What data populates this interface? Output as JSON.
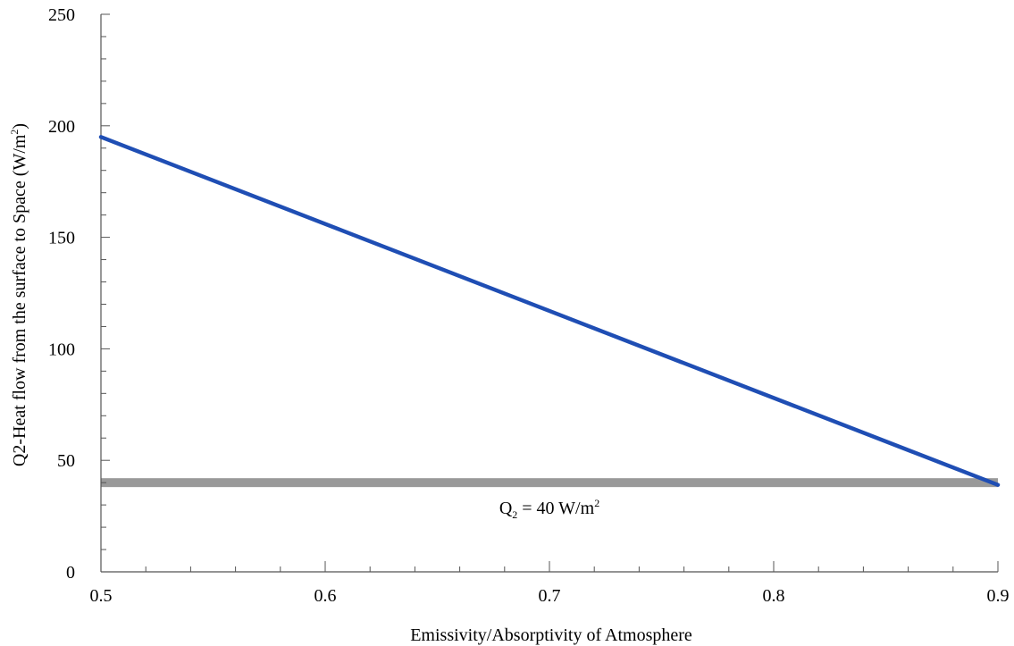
{
  "chart_data": {
    "type": "line",
    "xlabel": "Emissivity/Absorptivity of Atmosphere",
    "ylabel": {
      "main": "Q2-Heat flow from the surface to Space (W/m",
      "sup": "2",
      "close": ")"
    },
    "xlim": [
      0.5,
      0.9
    ],
    "ylim": [
      0,
      250
    ],
    "x_ticks": [
      "0.5",
      "0.6",
      "0.7",
      "0.8",
      "0.9"
    ],
    "y_ticks": [
      "0",
      "50",
      "100",
      "150",
      "200",
      "250"
    ],
    "grid": false,
    "series": [
      {
        "x": [
          0.5,
          0.9
        ],
        "y": [
          195,
          39
        ],
        "color": "#1f4eb4"
      }
    ],
    "reference_band": {
      "y_from": 38,
      "y_to": 42,
      "color": "#999999",
      "label": {
        "main": "Q",
        "sub": "2",
        "rest": " = 40 W/m",
        "sup": "2"
      },
      "label_at": {
        "x": 0.7,
        "y": 26
      }
    }
  }
}
